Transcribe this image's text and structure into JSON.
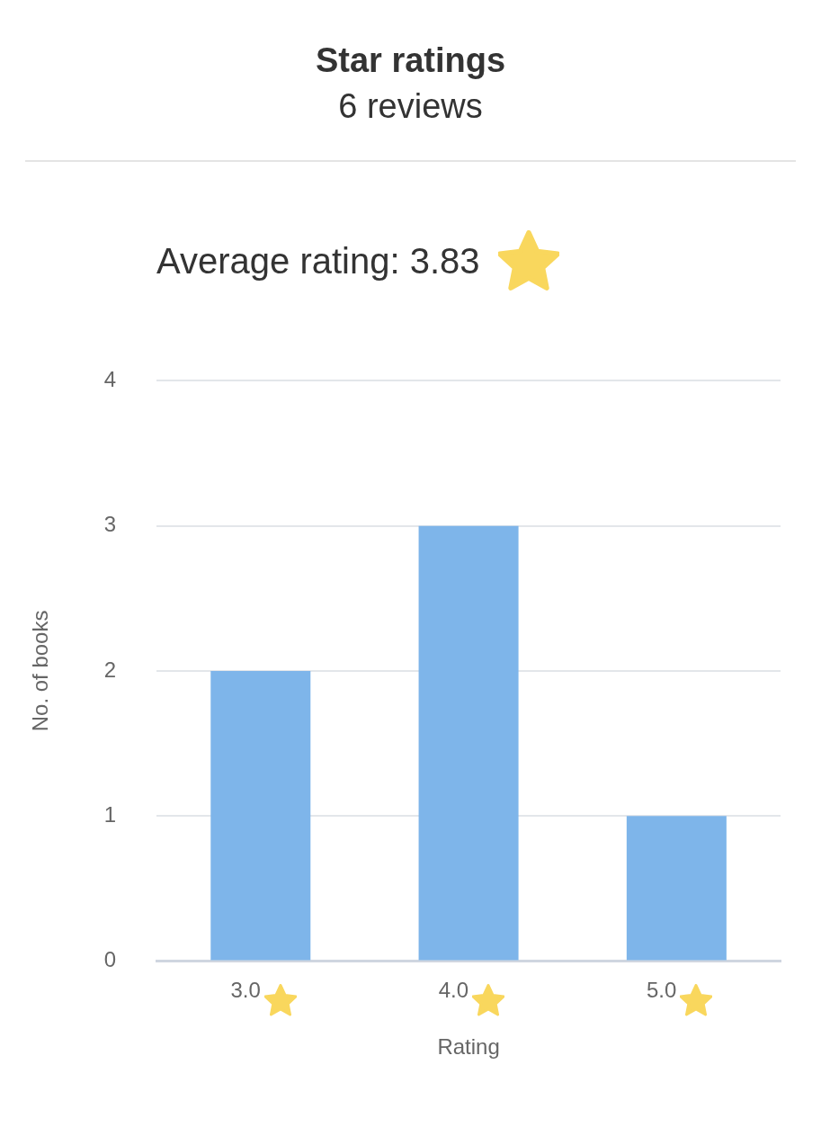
{
  "chart_data": {
    "type": "bar",
    "title": "Star ratings",
    "subtitle": "6 reviews",
    "annotations": [
      "Average rating: 3.83"
    ],
    "categories": [
      "3.0",
      "4.0",
      "5.0"
    ],
    "values": [
      2,
      3,
      1
    ],
    "color": "#7eb5ea",
    "xlabel": "Rating",
    "ylabel": "No. of books",
    "ylim": [
      0,
      4
    ],
    "yticks": [
      0,
      1,
      2,
      3,
      4
    ],
    "grid": "y",
    "legend": false
  }
}
